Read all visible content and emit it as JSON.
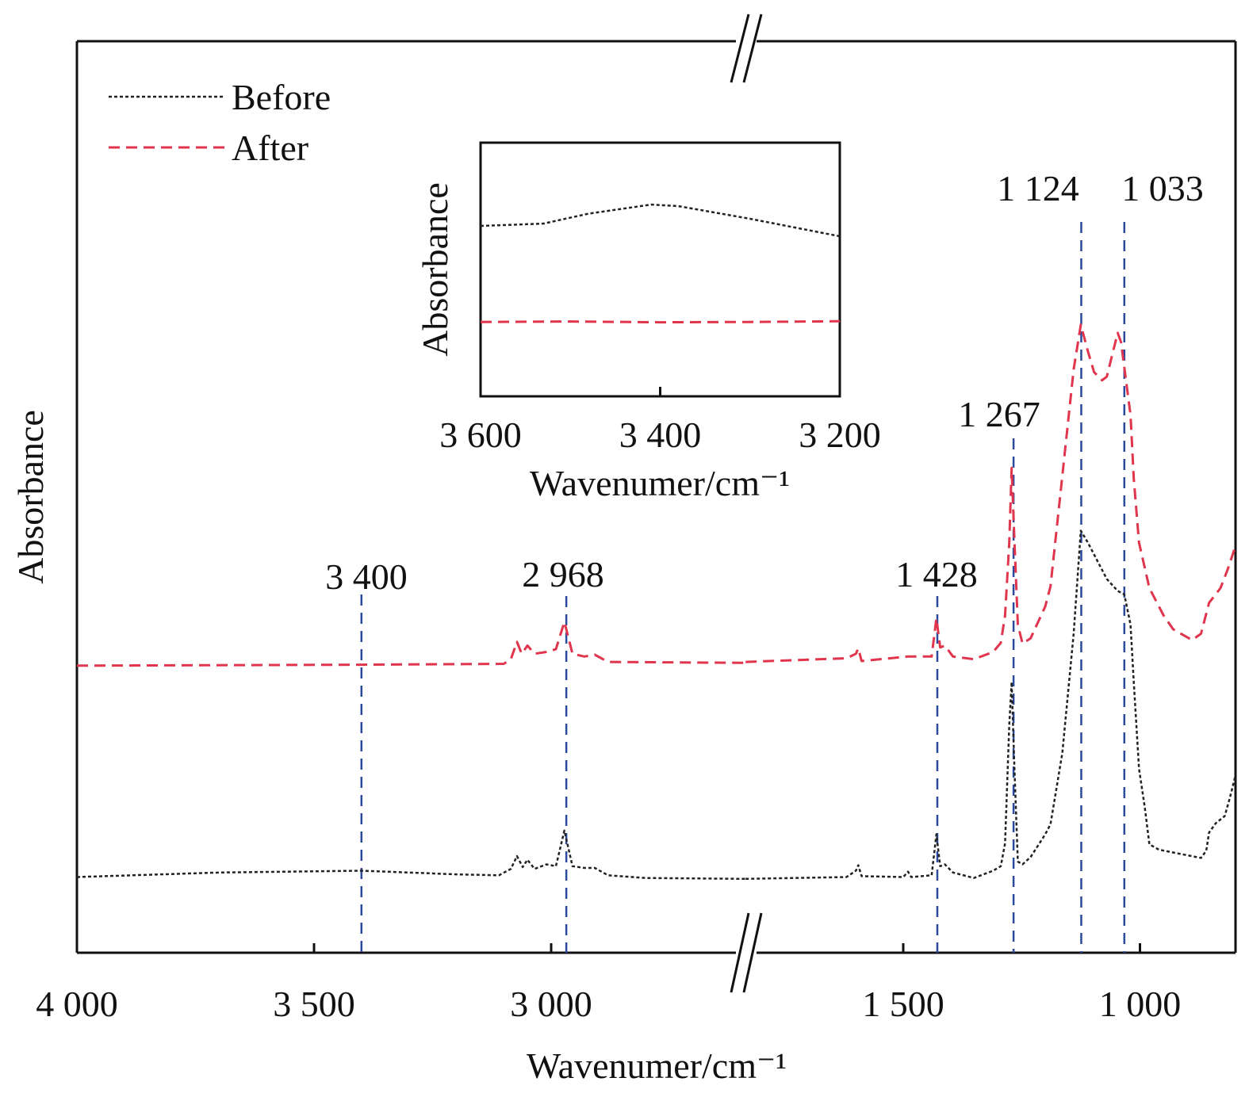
{
  "chart_data": {
    "type": "line",
    "title": "",
    "xlabel": "Wavenumer/cm⁻¹",
    "ylabel": "Absorbance",
    "x_axis": "broken",
    "x_segments": [
      [
        4000,
        2590
      ],
      [
        1833,
        799
      ]
    ],
    "xticks": [
      {
        "value": 4000,
        "label": "4 000"
      },
      {
        "value": 3500,
        "label": "3 500"
      },
      {
        "value": 3000,
        "label": "3 000"
      },
      {
        "value": 1500,
        "label": "1 500"
      },
      {
        "value": 1000,
        "label": "1 000"
      }
    ],
    "ylim": [
      0,
      1
    ],
    "grid": false,
    "legend": {
      "placement": "top-left",
      "entries": [
        "Before",
        "After"
      ]
    },
    "colors": {
      "Before": "#222222",
      "After": "#e0354c",
      "marker": "#2b4a9e"
    },
    "series": [
      {
        "name": "Before",
        "style": "dotted",
        "points": [
          [
            4000,
            0.083
          ],
          [
            3700,
            0.088
          ],
          [
            3400,
            0.09
          ],
          [
            3200,
            0.086
          ],
          [
            3110,
            0.085
          ],
          [
            3085,
            0.092
          ],
          [
            3072,
            0.106
          ],
          [
            3060,
            0.094
          ],
          [
            3050,
            0.102
          ],
          [
            3035,
            0.092
          ],
          [
            3010,
            0.097
          ],
          [
            2990,
            0.095
          ],
          [
            2972,
            0.134
          ],
          [
            2955,
            0.095
          ],
          [
            2930,
            0.093
          ],
          [
            2908,
            0.093
          ],
          [
            2880,
            0.085
          ],
          [
            2800,
            0.082
          ],
          [
            2590,
            0.081
          ],
          [
            1833,
            0.081
          ],
          [
            1620,
            0.083
          ],
          [
            1600,
            0.09
          ],
          [
            1595,
            0.096
          ],
          [
            1588,
            0.084
          ],
          [
            1500,
            0.083
          ],
          [
            1490,
            0.089
          ],
          [
            1483,
            0.083
          ],
          [
            1440,
            0.085
          ],
          [
            1430,
            0.13
          ],
          [
            1422,
            0.095
          ],
          [
            1412,
            0.097
          ],
          [
            1395,
            0.088
          ],
          [
            1351,
            0.082
          ],
          [
            1310,
            0.09
          ],
          [
            1294,
            0.095
          ],
          [
            1285,
            0.12
          ],
          [
            1276,
            0.25
          ],
          [
            1271,
            0.297
          ],
          [
            1265,
            0.2
          ],
          [
            1258,
            0.1
          ],
          [
            1248,
            0.097
          ],
          [
            1231,
            0.105
          ],
          [
            1200,
            0.13
          ],
          [
            1189,
            0.141
          ],
          [
            1164,
            0.219
          ],
          [
            1140,
            0.35
          ],
          [
            1125,
            0.463
          ],
          [
            1110,
            0.45
          ],
          [
            1097,
            0.437
          ],
          [
            1070,
            0.41
          ],
          [
            1047,
            0.397
          ],
          [
            1033,
            0.393
          ],
          [
            1020,
            0.36
          ],
          [
            1013,
            0.297
          ],
          [
            1002,
            0.202
          ],
          [
            990,
            0.16
          ],
          [
            980,
            0.119
          ],
          [
            960,
            0.113
          ],
          [
            930,
            0.11
          ],
          [
            871,
            0.104
          ],
          [
            860,
            0.112
          ],
          [
            854,
            0.132
          ],
          [
            840,
            0.142
          ],
          [
            821,
            0.15
          ],
          [
            810,
            0.17
          ],
          [
            799,
            0.193
          ]
        ]
      },
      {
        "name": "After",
        "style": "dashed",
        "points": [
          [
            4000,
            0.315
          ],
          [
            3400,
            0.316
          ],
          [
            3100,
            0.317
          ],
          [
            3085,
            0.322
          ],
          [
            3072,
            0.341
          ],
          [
            3062,
            0.328
          ],
          [
            3050,
            0.337
          ],
          [
            3035,
            0.328
          ],
          [
            3010,
            0.33
          ],
          [
            2990,
            0.333
          ],
          [
            2972,
            0.363
          ],
          [
            2955,
            0.328
          ],
          [
            2930,
            0.325
          ],
          [
            2908,
            0.327
          ],
          [
            2880,
            0.319
          ],
          [
            2590,
            0.318
          ],
          [
            1833,
            0.319
          ],
          [
            1620,
            0.323
          ],
          [
            1600,
            0.328
          ],
          [
            1595,
            0.334
          ],
          [
            1588,
            0.32
          ],
          [
            1490,
            0.325
          ],
          [
            1440,
            0.325
          ],
          [
            1430,
            0.367
          ],
          [
            1422,
            0.335
          ],
          [
            1412,
            0.337
          ],
          [
            1395,
            0.325
          ],
          [
            1351,
            0.322
          ],
          [
            1310,
            0.33
          ],
          [
            1294,
            0.34
          ],
          [
            1285,
            0.37
          ],
          [
            1276,
            0.45
          ],
          [
            1271,
            0.532
          ],
          [
            1265,
            0.45
          ],
          [
            1258,
            0.36
          ],
          [
            1248,
            0.339
          ],
          [
            1231,
            0.345
          ],
          [
            1200,
            0.38
          ],
          [
            1189,
            0.402
          ],
          [
            1164,
            0.523
          ],
          [
            1140,
            0.64
          ],
          [
            1125,
            0.689
          ],
          [
            1110,
            0.66
          ],
          [
            1097,
            0.637
          ],
          [
            1080,
            0.628
          ],
          [
            1070,
            0.632
          ],
          [
            1047,
            0.68
          ],
          [
            1040,
            0.67
          ],
          [
            1020,
            0.59
          ],
          [
            1013,
            0.52
          ],
          [
            1002,
            0.45
          ],
          [
            980,
            0.4
          ],
          [
            950,
            0.37
          ],
          [
            930,
            0.355
          ],
          [
            890,
            0.343
          ],
          [
            871,
            0.35
          ],
          [
            854,
            0.384
          ],
          [
            830,
            0.4
          ],
          [
            815,
            0.42
          ],
          [
            799,
            0.445
          ]
        ]
      }
    ],
    "annotations": [
      {
        "value": 3400,
        "label": "3 400"
      },
      {
        "value": 2968,
        "label": "2 968"
      },
      {
        "value": 1428,
        "label": "1 428"
      },
      {
        "value": 1267,
        "label": "1 267"
      },
      {
        "value": 1124,
        "label": "1 124"
      },
      {
        "value": 1033,
        "label": "1 033"
      }
    ],
    "inset": {
      "xlabel": "Wavenumer/cm⁻¹",
      "ylabel": "Absorbance",
      "xlim": [
        3600,
        3200
      ],
      "ylim": [
        0,
        1
      ],
      "xticks": [
        {
          "value": 3600,
          "label": "3 600"
        },
        {
          "value": 3400,
          "label": "3 400"
        },
        {
          "value": 3200,
          "label": "3 200"
        }
      ],
      "series": [
        {
          "name": "Before",
          "points": [
            [
              3600,
              0.672
            ],
            [
              3530,
              0.681
            ],
            [
              3480,
              0.72
            ],
            [
              3410,
              0.756
            ],
            [
              3380,
              0.75
            ],
            [
              3300,
              0.7
            ],
            [
              3200,
              0.631
            ]
          ]
        },
        {
          "name": "After",
          "points": [
            [
              3600,
              0.293
            ],
            [
              3500,
              0.295
            ],
            [
              3400,
              0.292
            ],
            [
              3300,
              0.293
            ],
            [
              3200,
              0.296
            ]
          ]
        }
      ]
    }
  }
}
